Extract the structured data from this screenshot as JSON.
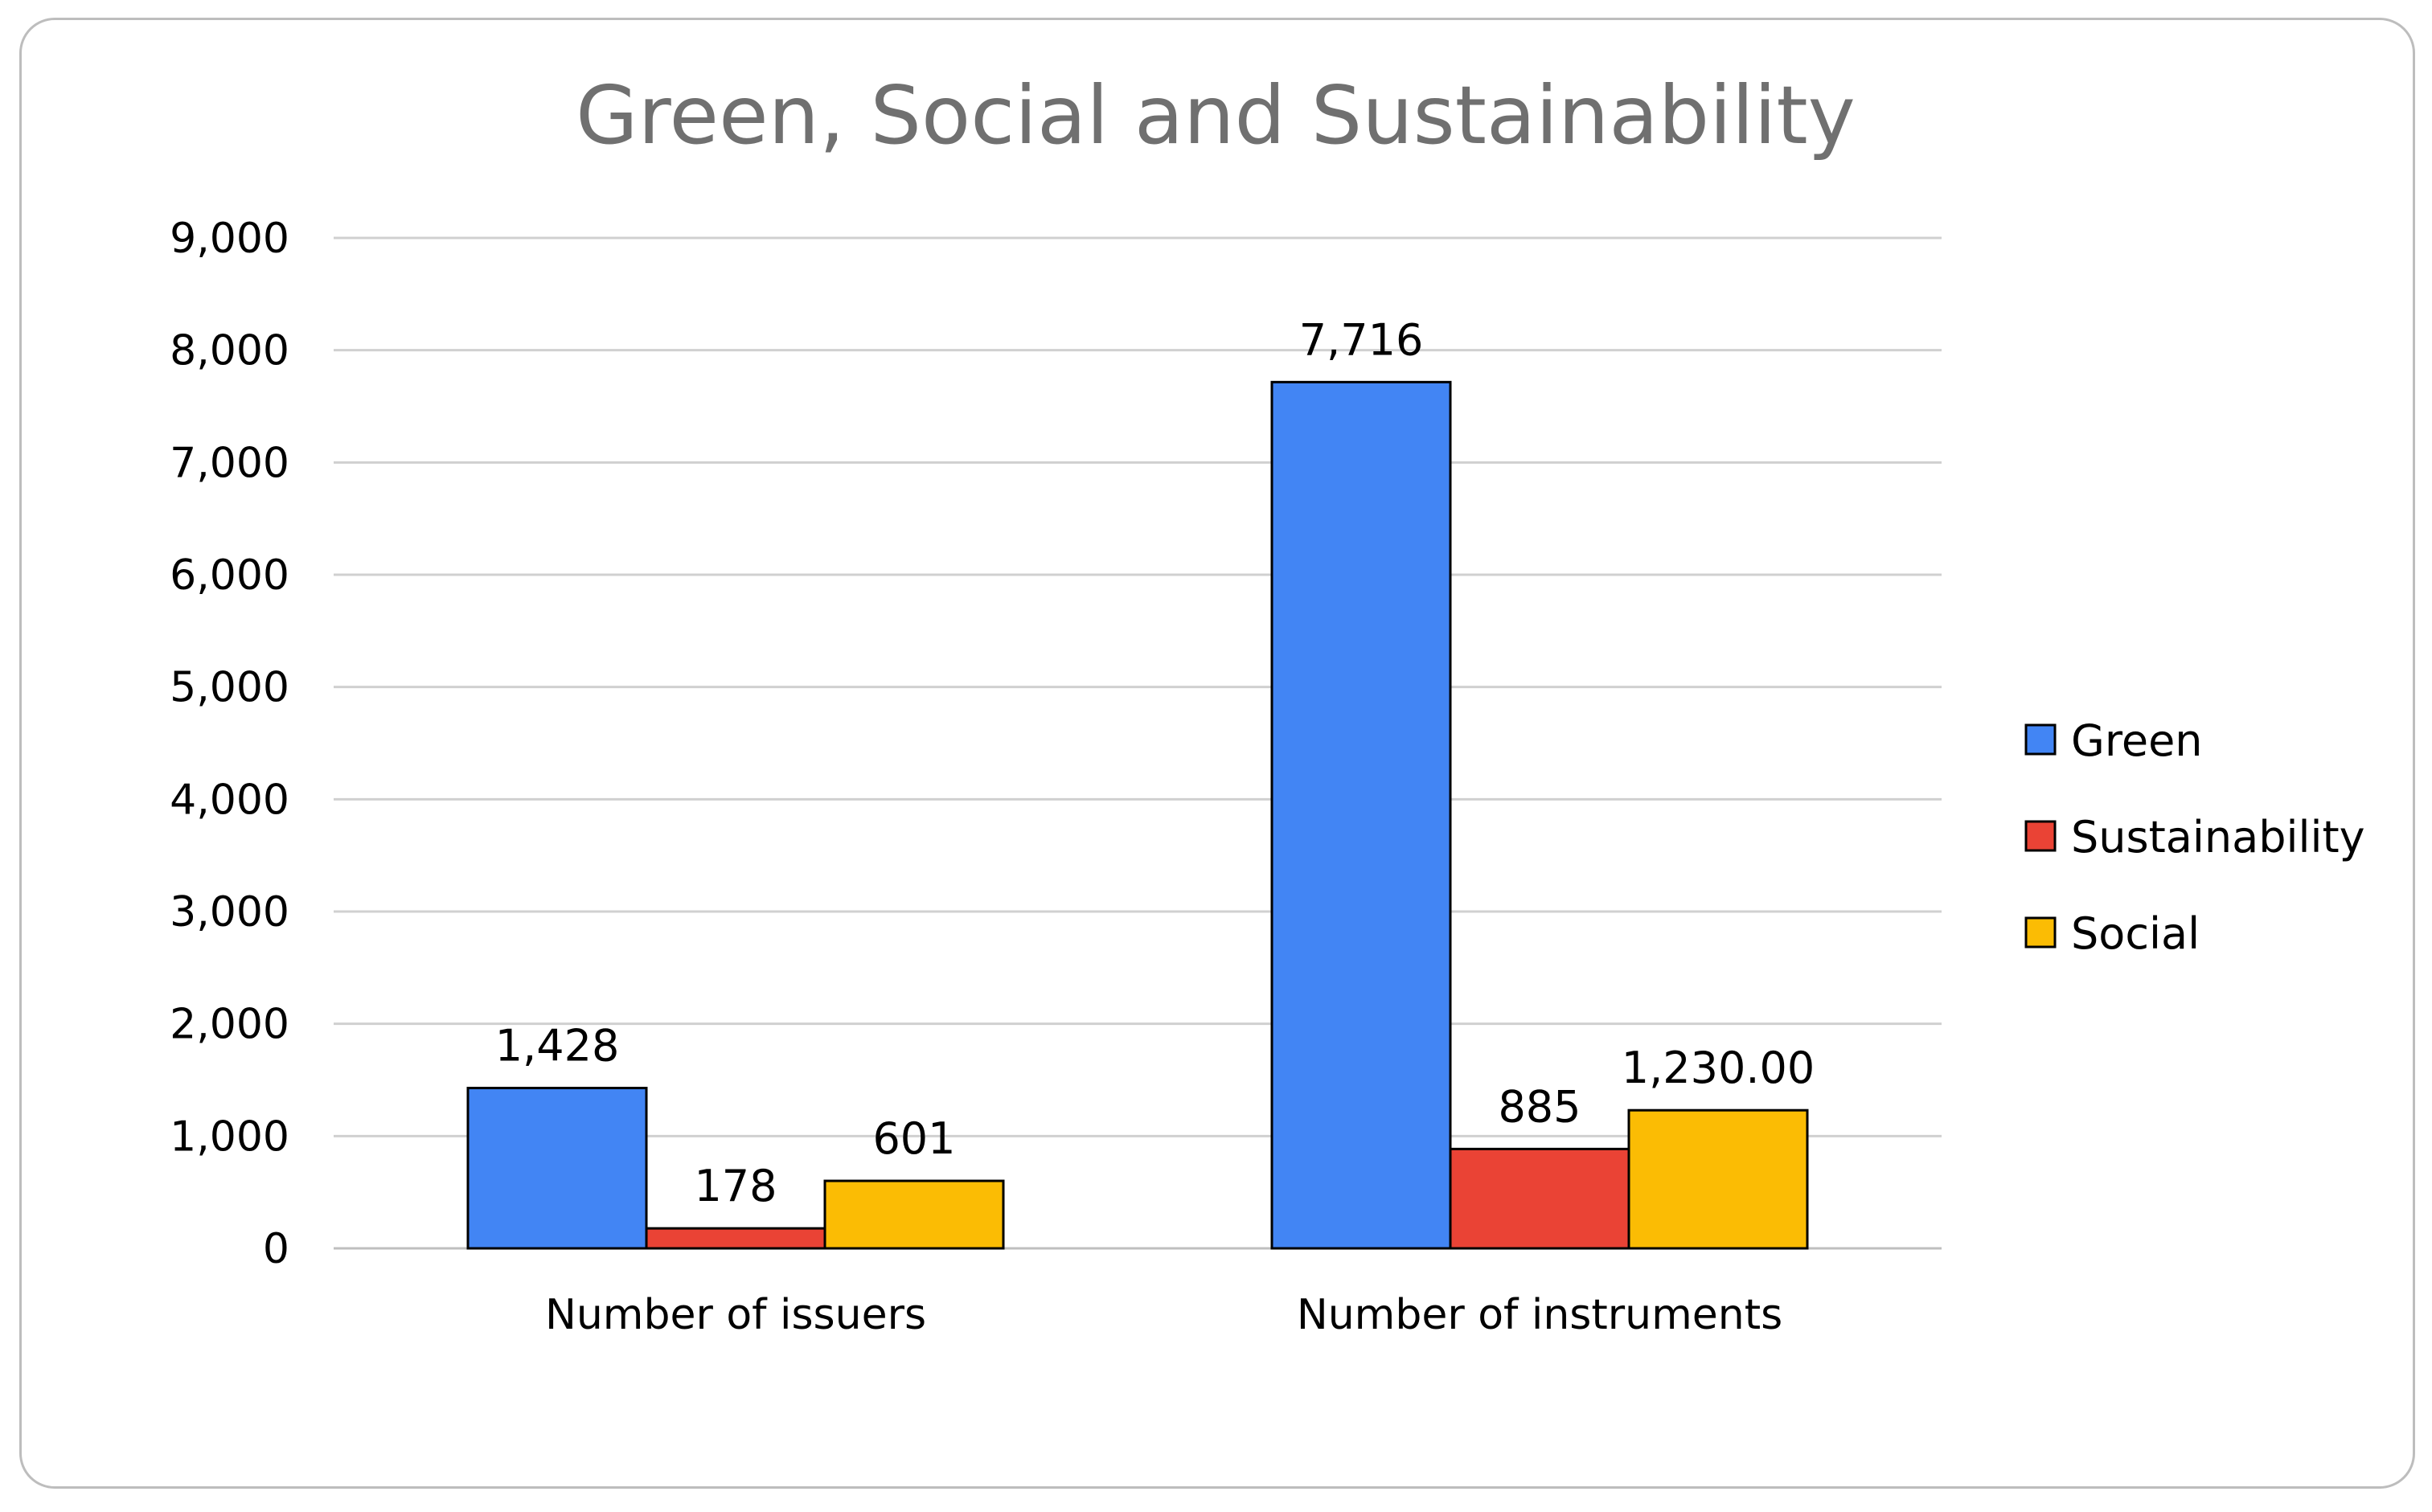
{
  "chart_data": {
    "type": "bar",
    "title": "Green, Social and Sustainability",
    "xlabel": "",
    "ylabel": "",
    "categories": [
      "Number of issuers",
      "Number of instruments"
    ],
    "ylim": [
      0,
      9000
    ],
    "yticks": [
      0,
      1000,
      2000,
      3000,
      4000,
      5000,
      6000,
      7000,
      8000,
      9000
    ],
    "ytick_labels": [
      "0",
      "1,000",
      "2,000",
      "3,000",
      "4,000",
      "5,000",
      "6,000",
      "7,000",
      "8,000",
      "9,000"
    ],
    "grid": true,
    "legend_position": "right",
    "series": [
      {
        "name": "Green",
        "color": "#4285F4",
        "values": [
          1428,
          7716
        ],
        "data_labels": [
          "1,428",
          "7,716"
        ]
      },
      {
        "name": "Sustainability",
        "color": "#EA4335",
        "values": [
          178,
          885
        ],
        "data_labels": [
          "178",
          "885"
        ]
      },
      {
        "name": "Social",
        "color": "#FBBC04",
        "values": [
          601,
          1230
        ],
        "data_labels": [
          "601",
          "1,230.00"
        ]
      }
    ]
  }
}
